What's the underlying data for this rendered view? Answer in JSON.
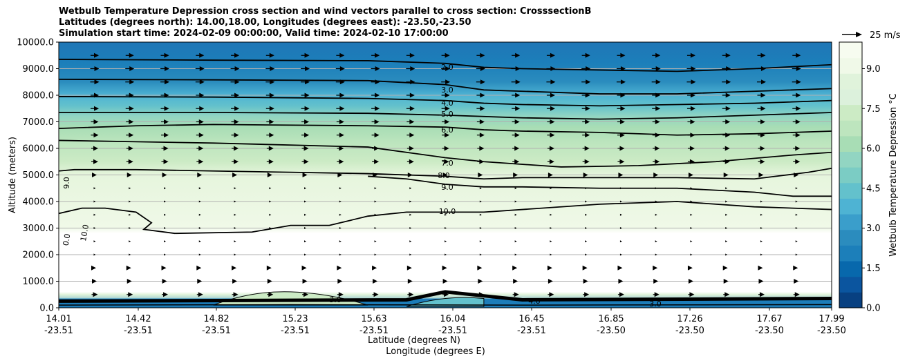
{
  "titles": [
    "Wetbulb Temperature Depression cross section and wind vectors parallel to cross section: CrosssectionB",
    "Latitudes (degrees north): 14.00,18.00, Longitudes (degrees east): -23.50,-23.50",
    "Simulation start time: 2024-02-09 00:00:00, Valid time: 2024-02-10 17:00:00"
  ],
  "chart_data": {
    "type": "filled-contour cross section with wind vectors",
    "ylabel": "Altitude (meters)",
    "xlabel": "Latitude (degrees N)",
    "xlabel2": "Longitude (degrees E)",
    "ylim": [
      0,
      10000
    ],
    "y_ticks": [
      "0.0",
      "1000.0",
      "2000.0",
      "3000.0",
      "4000.0",
      "5000.0",
      "6000.0",
      "7000.0",
      "8000.0",
      "9000.0",
      "10000.0"
    ],
    "x_ticks": [
      {
        "lat": "14.01",
        "lon": "-23.51"
      },
      {
        "lat": "14.42",
        "lon": "-23.51"
      },
      {
        "lat": "14.82",
        "lon": "-23.51"
      },
      {
        "lat": "15.23",
        "lon": "-23.51"
      },
      {
        "lat": "15.63",
        "lon": "-23.51"
      },
      {
        "lat": "16.04",
        "lon": "-23.51"
      },
      {
        "lat": "16.45",
        "lon": "-23.51"
      },
      {
        "lat": "16.85",
        "lon": "-23.50"
      },
      {
        "lat": "17.26",
        "lon": "-23.50"
      },
      {
        "lat": "17.67",
        "lon": "-23.50"
      },
      {
        "lat": "17.99",
        "lon": "-23.50"
      }
    ],
    "grid": "horizontal",
    "colormap": "GnBu_r",
    "colorbar": {
      "label": "Wetbulb Temperature Depression °C",
      "range": [
        0,
        10
      ],
      "ticks": [
        "0.0",
        "1.5",
        "3.0",
        "4.5",
        "6.0",
        "7.5",
        "9.0"
      ],
      "colors": [
        "#084081",
        "#0b559f",
        "#0868ac",
        "#1c7fba",
        "#2b8cbe",
        "#3a9ecb",
        "#4eb3d3",
        "#63c1cc",
        "#7bccc4",
        "#92d5c2",
        "#a8ddb5",
        "#bde5be",
        "#ccebc5",
        "#dcf1dc",
        "#e0f3db",
        "#f0f9e8",
        "#f7fcf0"
      ]
    },
    "contour_levels": [
      "2.0",
      "3.0",
      "4.0",
      "5.0",
      "6.0",
      "7.0",
      "8.0",
      "9.0",
      "10.0"
    ],
    "extra_contour_labels": [
      "9.0",
      "10.0",
      "0.0"
    ],
    "near_surface_contour_labels": [
      "3.0",
      "4.0",
      "3.0"
    ],
    "wind_key": "25 m/s",
    "vector_rows": [
      {
        "alt": 9500,
        "len": 12
      },
      {
        "alt": 9000,
        "len": 13
      },
      {
        "alt": 8500,
        "len": 13
      },
      {
        "alt": 8000,
        "len": 12
      },
      {
        "alt": 7500,
        "len": 12
      },
      {
        "alt": 7000,
        "len": 11
      },
      {
        "alt": 6500,
        "len": 11
      },
      {
        "alt": 6000,
        "len": 10
      },
      {
        "alt": 5500,
        "len": 10
      },
      {
        "alt": 5000,
        "len": 6
      },
      {
        "alt": 4500,
        "len": 3
      },
      {
        "alt": 4000,
        "len": 2
      },
      {
        "alt": 3500,
        "len": 2
      },
      {
        "alt": 3000,
        "len": 2
      },
      {
        "alt": 2500,
        "len": 2
      },
      {
        "alt": 2000,
        "len": 3
      },
      {
        "alt": 1500,
        "len": 4
      },
      {
        "alt": 1000,
        "len": 6
      },
      {
        "alt": 500,
        "len": 9
      }
    ],
    "isolines": [
      {
        "label": "2.0",
        "pts": [
          [
            0,
            9350
          ],
          [
            0.2,
            9320
          ],
          [
            0.4,
            9300
          ],
          [
            0.5,
            9200
          ],
          [
            0.55,
            9050
          ],
          [
            0.6,
            9000
          ],
          [
            0.7,
            8950
          ],
          [
            0.8,
            8900
          ],
          [
            0.9,
            9000
          ],
          [
            1,
            9150
          ]
        ]
      },
      {
        "label": "3.0",
        "pts": [
          [
            0,
            8600
          ],
          [
            0.2,
            8580
          ],
          [
            0.4,
            8550
          ],
          [
            0.5,
            8400
          ],
          [
            0.55,
            8200
          ],
          [
            0.6,
            8150
          ],
          [
            0.7,
            8050
          ],
          [
            0.8,
            8050
          ],
          [
            0.9,
            8150
          ],
          [
            1,
            8250
          ]
        ]
      },
      {
        "label": "4.0",
        "pts": [
          [
            0,
            7950
          ],
          [
            0.2,
            7930
          ],
          [
            0.4,
            7880
          ],
          [
            0.5,
            7800
          ],
          [
            0.55,
            7700
          ],
          [
            0.6,
            7650
          ],
          [
            0.7,
            7600
          ],
          [
            0.8,
            7650
          ],
          [
            0.9,
            7700
          ],
          [
            1,
            7800
          ]
        ]
      },
      {
        "label": "5.0",
        "pts": [
          [
            0,
            7350
          ],
          [
            0.2,
            7350
          ],
          [
            0.4,
            7320
          ],
          [
            0.5,
            7250
          ],
          [
            0.55,
            7200
          ],
          [
            0.6,
            7150
          ],
          [
            0.7,
            7100
          ],
          [
            0.8,
            7150
          ],
          [
            0.9,
            7250
          ],
          [
            1,
            7350
          ]
        ]
      },
      {
        "label": "6.0",
        "pts": [
          [
            0,
            6750
          ],
          [
            0.1,
            6850
          ],
          [
            0.2,
            6900
          ],
          [
            0.4,
            6850
          ],
          [
            0.5,
            6800
          ],
          [
            0.55,
            6700
          ],
          [
            0.6,
            6650
          ],
          [
            0.7,
            6600
          ],
          [
            0.8,
            6500
          ],
          [
            0.9,
            6550
          ],
          [
            1,
            6650
          ]
        ]
      },
      {
        "label": "7.0",
        "pts": [
          [
            0,
            6300
          ],
          [
            0.1,
            6250
          ],
          [
            0.2,
            6200
          ],
          [
            0.4,
            6050
          ],
          [
            0.5,
            5650
          ],
          [
            0.55,
            5500
          ],
          [
            0.6,
            5400
          ],
          [
            0.65,
            5300
          ],
          [
            0.75,
            5350
          ],
          [
            0.85,
            5500
          ],
          [
            0.95,
            5750
          ],
          [
            1,
            5850
          ]
        ]
      },
      {
        "label": "8.0",
        "pts": [
          [
            0,
            5150
          ],
          [
            0.02,
            5200
          ],
          [
            0.1,
            5200
          ],
          [
            0.2,
            5150
          ],
          [
            0.3,
            5100
          ],
          [
            0.4,
            5050
          ],
          [
            0.5,
            4950
          ],
          [
            0.55,
            4850
          ],
          [
            0.6,
            4900
          ],
          [
            0.7,
            4900
          ],
          [
            0.8,
            4900
          ],
          [
            0.9,
            4850
          ],
          [
            0.97,
            5100
          ],
          [
            1,
            5250
          ]
        ]
      },
      {
        "label": "9.0",
        "pts": [
          [
            0.4,
            4950
          ],
          [
            0.45,
            4850
          ],
          [
            0.5,
            4650
          ],
          [
            0.55,
            4550
          ],
          [
            0.6,
            4550
          ],
          [
            0.7,
            4500
          ],
          [
            0.8,
            4500
          ],
          [
            0.9,
            4350
          ],
          [
            0.95,
            4200
          ],
          [
            1,
            4200
          ]
        ]
      },
      {
        "label": "10.0",
        "pts": [
          [
            0,
            3550
          ],
          [
            0.03,
            3750
          ],
          [
            0.06,
            3750
          ],
          [
            0.1,
            3600
          ],
          [
            0.12,
            3200
          ],
          [
            0.11,
            2950
          ],
          [
            0.15,
            2800
          ],
          [
            0.25,
            2850
          ],
          [
            0.3,
            3100
          ],
          [
            0.35,
            3100
          ],
          [
            0.4,
            3450
          ],
          [
            0.45,
            3600
          ],
          [
            0.5,
            3600
          ],
          [
            0.55,
            3600
          ],
          [
            0.6,
            3700
          ],
          [
            0.7,
            3900
          ],
          [
            0.8,
            4000
          ],
          [
            0.9,
            3800
          ],
          [
            1,
            3700
          ]
        ]
      }
    ]
  }
}
